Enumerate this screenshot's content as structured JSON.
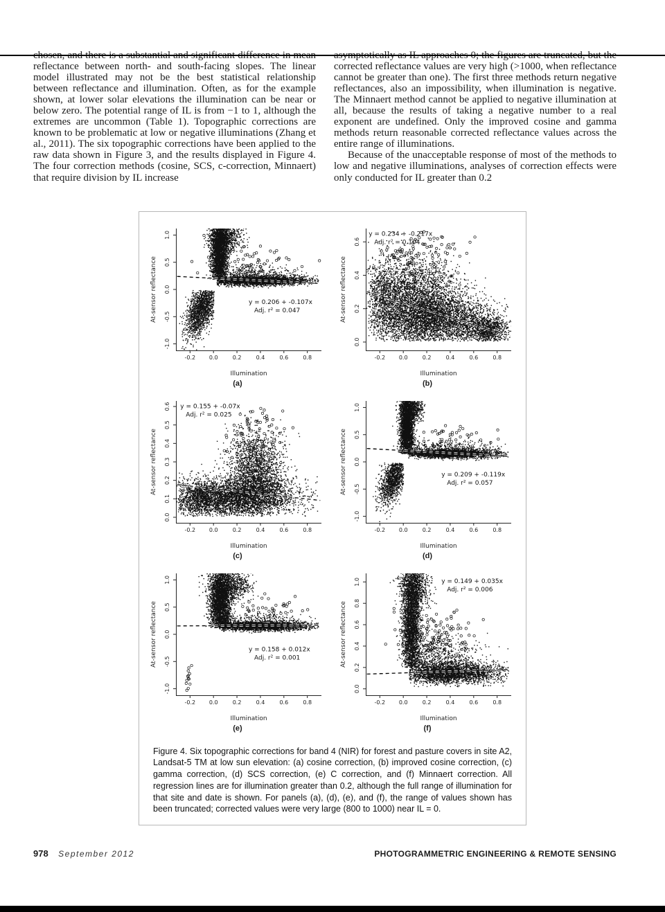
{
  "page": {
    "left_column": "chosen, and there is a substantial and significant difference in mean reflectance between north- and south-facing slopes. The linear model illustrated may not be the best statistical relationship between reflectance and illumination. Often, as for the example shown, at lower solar elevations the illumination can be near or below zero. The potential range of IL is from −1 to 1, although the extremes are uncommon (Table 1). Topographic corrections are known to be problematic at low or negative illuminations (Zhang et al., 2011). The six topographic corrections have been applied to the raw data shown in Figure 3, and the results displayed in Figure 4. The four correction methods (cosine, SCS, c-correction, Minnaert) that require division by IL increase",
    "right_column_p1": "asymptotically as IL approaches 0; the figures are truncated, but the corrected reflectance values are very high (>1000, when reflectance cannot be greater than one). The first three methods return negative reflectances, also an impossibility, when illumination is negative. The Minnaert method cannot be applied to negative illumination at all, because the results of taking a negative number to a real exponent are undefined. Only the improved cosine and gamma methods return reasonable corrected reflectance values across the entire range of illuminations.",
    "right_column_p2": "Because of the unacceptable response of most of the methods to low and negative illuminations, analyses of correction effects were only conducted for IL greater than 0.2"
  },
  "figure": {
    "caption": "Figure 4.  Six topographic corrections for band 4 (NIR) for forest and pasture covers in site A2, Landsat-5 TM at low sun elevation: (a) cosine correction, (b) improved cosine correction, (c) gamma correction, (d) SCS correction, (e) C correction, and (f) Minnaert correction. All regression lines are for illumination greater than 0.2, although the full range of illumination for that site and date is shown. For panels (a), (d), (e), and (f), the range of values shown has been truncated; corrected values were very large (800 to 1000) near IL = 0."
  },
  "footer": {
    "page_number": "978",
    "issue": "September 2012",
    "journal": "PHOTOGRAMMETRIC ENGINEERING & REMOTE SENSING"
  },
  "chart_data": [
    {
      "panel": "a",
      "label": "(a)",
      "type": "scatter",
      "xlabel": "Illumination",
      "ylabel": "At-sensor reflectance",
      "xlim": [
        -0.32,
        0.92
      ],
      "ylim": [
        -1.12,
        1.12
      ],
      "xticks": [
        -0.2,
        0.0,
        0.2,
        0.4,
        0.6,
        0.8
      ],
      "yticks": [
        -1.0,
        -0.5,
        0.0,
        0.5,
        1.0
      ],
      "regression": {
        "intercept": 0.206,
        "slope": -0.107,
        "style": "dashed"
      },
      "annotation": {
        "lines": [
          "y = 0.206 + -0.107x",
          "Adj. r² = 0.047"
        ],
        "fx": 0.5,
        "fy": 0.58
      },
      "clusters": [
        {
          "n": 2600,
          "cx": 0.05,
          "cy": 0.62,
          "sx": 0.035,
          "sy": 0.3,
          "clipy": [
            0.18,
            1.3
          ]
        },
        {
          "n": 900,
          "cx": 0.1,
          "cy": 0.98,
          "sx": 0.07,
          "sy": 0.14,
          "clipy": [
            0.5,
            1.3
          ]
        },
        {
          "n": 2600,
          "cx": 0.38,
          "cy": 0.16,
          "sx": 0.23,
          "sy": 0.045,
          "clipx": [
            0.03,
            0.9
          ],
          "clipy": [
            0.02,
            0.4
          ]
        },
        {
          "n": 500,
          "cx": 0.3,
          "cy": 0.26,
          "sx": 0.18,
          "sy": 0.09,
          "clipx": [
            0.03,
            0.9
          ],
          "clipy": [
            0.05,
            0.6
          ]
        },
        {
          "n": 60,
          "cx": 0.3,
          "cy": 0.5,
          "sx": 0.2,
          "sy": 0.18,
          "open": true,
          "clipy": [
            0.2,
            1.0
          ]
        },
        {
          "n": 1700,
          "cx": -0.1,
          "cy": -0.35,
          "sx": 0.07,
          "sy": 0.22,
          "tilt": 2.2,
          "clipx": [
            -0.3,
            0.005
          ],
          "clipy": [
            -1.3,
            -0.02
          ]
        }
      ]
    },
    {
      "panel": "b",
      "label": "(b)",
      "type": "scatter",
      "xlabel": "Illumination",
      "ylabel": "At-sensor reflectance",
      "xlim": [
        -0.32,
        0.92
      ],
      "ylim": [
        -0.05,
        0.68
      ],
      "xticks": [
        -0.2,
        0.0,
        0.2,
        0.4,
        0.6,
        0.8
      ],
      "yticks": [
        0.0,
        0.2,
        0.4,
        0.6
      ],
      "regression": {
        "intercept": 0.234,
        "slope": -0.217,
        "style": "dashed"
      },
      "annotation": {
        "lines": [
          "y = 0.234 + -0.217x",
          "Adj. r² = 0.104"
        ],
        "fx": 0.02,
        "fy": 0.02
      },
      "clusters": [
        {
          "n": 4200,
          "cx": 0.12,
          "cy": 0.22,
          "sx": 0.24,
          "sy": 0.13,
          "tilt": -0.15,
          "clipx": [
            -0.3,
            0.9
          ],
          "clipy": [
            0.005,
            0.66
          ]
        },
        {
          "n": 2400,
          "cx": 0.3,
          "cy": 0.13,
          "sx": 0.26,
          "sy": 0.07,
          "clipx": [
            -0.3,
            0.9
          ],
          "clipy": [
            0.005,
            0.45
          ]
        },
        {
          "n": 900,
          "cx": 0.72,
          "cy": 0.07,
          "sx": 0.09,
          "sy": 0.04,
          "clipy": [
            0.005,
            0.25
          ]
        },
        {
          "n": 500,
          "cx": -0.18,
          "cy": 0.25,
          "sx": 0.06,
          "sy": 0.12,
          "clipy": [
            0.01,
            0.6
          ]
        },
        {
          "n": 130,
          "cx": 0.15,
          "cy": 0.5,
          "sx": 0.2,
          "sy": 0.1,
          "open": true,
          "clipy": [
            0.3,
            0.67
          ]
        }
      ]
    },
    {
      "panel": "c",
      "label": "(c)",
      "type": "scatter",
      "xlabel": "Illumination",
      "ylabel": "At-sensor reflectance",
      "xlim": [
        -0.32,
        0.92
      ],
      "ylim": [
        -0.03,
        0.63
      ],
      "xticks": [
        -0.2,
        0.0,
        0.2,
        0.4,
        0.6,
        0.8
      ],
      "yticks": [
        0.0,
        0.1,
        0.2,
        0.3,
        0.4,
        0.5,
        0.6
      ],
      "regression": {
        "intercept": 0.155,
        "slope": -0.07,
        "style": "dashed"
      },
      "annotation": {
        "lines": [
          "y = 0.155 + -0.07x",
          "Adj. r² = 0.025"
        ],
        "fx": 0.03,
        "fy": 0.02
      },
      "clusters": [
        {
          "n": 3800,
          "cx": 0.2,
          "cy": 0.11,
          "sx": 0.26,
          "sy": 0.055,
          "clipx": [
            -0.3,
            0.9
          ],
          "clipy": [
            0.005,
            0.45
          ]
        },
        {
          "n": 2000,
          "cx": 0.36,
          "cy": 0.24,
          "sx": 0.12,
          "sy": 0.11,
          "clipy": [
            0.02,
            0.58
          ]
        },
        {
          "n": 700,
          "cx": -0.12,
          "cy": 0.1,
          "sx": 0.09,
          "sy": 0.05,
          "clipy": [
            0.005,
            0.3
          ]
        },
        {
          "n": 90,
          "cx": 0.35,
          "cy": 0.42,
          "sx": 0.12,
          "sy": 0.09,
          "open": true,
          "clipy": [
            0.25,
            0.6
          ]
        }
      ]
    },
    {
      "panel": "d",
      "label": "(d)",
      "type": "scatter",
      "xlabel": "Illumination",
      "ylabel": "At-sensor reflectance",
      "xlim": [
        -0.32,
        0.92
      ],
      "ylim": [
        -1.12,
        1.12
      ],
      "xticks": [
        -0.2,
        0.0,
        0.2,
        0.4,
        0.6,
        0.8
      ],
      "yticks": [
        -1.0,
        -0.5,
        0.0,
        0.5,
        1.0
      ],
      "regression": {
        "intercept": 0.209,
        "slope": -0.119,
        "style": "dashed"
      },
      "annotation": {
        "lines": [
          "y = 0.209 + -0.119x",
          "Adj. r² = 0.057"
        ],
        "fx": 0.52,
        "fy": 0.58
      },
      "clusters": [
        {
          "n": 2800,
          "cx": 0.03,
          "cy": 0.6,
          "sx": 0.03,
          "sy": 0.32,
          "clipy": [
            0.15,
            1.3
          ]
        },
        {
          "n": 700,
          "cx": 0.07,
          "cy": 0.98,
          "sx": 0.05,
          "sy": 0.12,
          "clipy": [
            0.6,
            1.3
          ]
        },
        {
          "n": 2400,
          "cx": 0.4,
          "cy": 0.15,
          "sx": 0.22,
          "sy": 0.04,
          "clipx": [
            0.04,
            0.9
          ],
          "clipy": [
            0.02,
            0.35
          ]
        },
        {
          "n": 420,
          "cx": 0.35,
          "cy": 0.23,
          "sx": 0.2,
          "sy": 0.08,
          "clipx": [
            0.04,
            0.9
          ],
          "clipy": [
            0.03,
            0.5
          ]
        },
        {
          "n": 50,
          "cx": 0.35,
          "cy": 0.45,
          "sx": 0.2,
          "sy": 0.15,
          "open": true,
          "clipy": [
            0.2,
            0.9
          ]
        },
        {
          "n": 1400,
          "cx": -0.08,
          "cy": -0.3,
          "sx": 0.06,
          "sy": 0.2,
          "tilt": 2.4,
          "clipx": [
            -0.28,
            0.003
          ],
          "clipy": [
            -1.3,
            -0.02
          ]
        }
      ]
    },
    {
      "panel": "e",
      "label": "(e)",
      "type": "scatter",
      "xlabel": "Illumination",
      "ylabel": "At-sensor reflectance",
      "xlim": [
        -0.32,
        0.92
      ],
      "ylim": [
        -1.12,
        1.12
      ],
      "xticks": [
        -0.2,
        0.0,
        0.2,
        0.4,
        0.6,
        0.8
      ],
      "yticks": [
        -1.0,
        -0.5,
        0.0,
        0.5,
        1.0
      ],
      "regression": {
        "intercept": 0.158,
        "slope": 0.012,
        "style": "dashed"
      },
      "annotation": {
        "lines": [
          "y = 0.158 + 0.012x",
          "Adj. r² = 0.001"
        ],
        "fx": 0.5,
        "fy": 0.6
      },
      "clusters": [
        {
          "n": 3000,
          "cx": 0.06,
          "cy": 0.55,
          "sx": 0.045,
          "sy": 0.32,
          "clipy": [
            0.12,
            1.3
          ]
        },
        {
          "n": 900,
          "cx": 0.13,
          "cy": 0.92,
          "sx": 0.09,
          "sy": 0.14,
          "clipy": [
            0.5,
            1.3
          ]
        },
        {
          "n": 2600,
          "cx": 0.4,
          "cy": 0.15,
          "sx": 0.23,
          "sy": 0.04,
          "clipx": [
            0.05,
            0.9
          ],
          "clipy": [
            0.02,
            0.35
          ]
        },
        {
          "n": 450,
          "cx": 0.35,
          "cy": 0.24,
          "sx": 0.2,
          "sy": 0.08,
          "clipx": [
            0.05,
            0.9
          ],
          "clipy": [
            0.03,
            0.55
          ]
        },
        {
          "n": 40,
          "cx": 0.4,
          "cy": 0.5,
          "sx": 0.18,
          "sy": 0.12,
          "open": true,
          "clipy": [
            0.25,
            0.85
          ]
        },
        {
          "n": 14,
          "cx": -0.21,
          "cy": -0.72,
          "sx": 0.012,
          "sy": 0.16,
          "open": true,
          "clipy": [
            -1.05,
            -0.45
          ]
        }
      ]
    },
    {
      "panel": "f",
      "label": "(f)",
      "type": "scatter",
      "xlabel": "Illumination",
      "ylabel": "At-sensor reflectance",
      "xlim": [
        -0.32,
        0.92
      ],
      "ylim": [
        -0.06,
        1.08
      ],
      "xticks": [
        -0.2,
        0.0,
        0.2,
        0.4,
        0.6,
        0.8
      ],
      "yticks": [
        0.0,
        0.2,
        0.4,
        0.6,
        0.8,
        1.0
      ],
      "regression": {
        "intercept": 0.149,
        "slope": 0.035,
        "style": "dashed"
      },
      "annotation": {
        "lines": [
          "y = 0.149 + 0.035x",
          "Adj. r² = 0.006"
        ],
        "fx": 0.52,
        "fy": 0.04
      },
      "clusters": [
        {
          "n": 3200,
          "cx": 0.07,
          "cy": 0.6,
          "sx": 0.04,
          "sy": 0.3,
          "clipy": [
            0.2,
            1.2
          ]
        },
        {
          "n": 800,
          "cx": 0.1,
          "cy": 0.97,
          "sx": 0.06,
          "sy": 0.1,
          "clipy": [
            0.6,
            1.2
          ]
        },
        {
          "n": 2800,
          "cx": 0.4,
          "cy": 0.15,
          "sx": 0.23,
          "sy": 0.05,
          "clipx": [
            0.05,
            0.9
          ],
          "clipy": [
            0.02,
            0.38
          ]
        },
        {
          "n": 700,
          "cx": 0.3,
          "cy": 0.28,
          "sx": 0.17,
          "sy": 0.1,
          "clipx": [
            0.05,
            0.9
          ],
          "clipy": [
            0.05,
            0.6
          ]
        },
        {
          "n": 120,
          "cx": 0.3,
          "cy": 0.5,
          "sx": 0.15,
          "sy": 0.12,
          "open": true,
          "clipy": [
            0.3,
            0.9
          ]
        }
      ]
    }
  ]
}
